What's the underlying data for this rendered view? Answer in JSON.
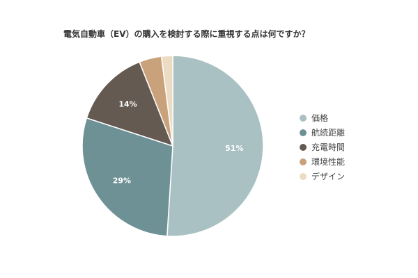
{
  "chart_data": {
    "type": "pie",
    "title": "電気自動車（EV）の購入を検討する際に重視する点は何ですか？",
    "categories": [
      "価格",
      "航続距離",
      "充電時間",
      "環境性能",
      "デザイン"
    ],
    "values": [
      51,
      29,
      14,
      4,
      2
    ],
    "data_labels": [
      "51%",
      "29%",
      "14%",
      "",
      ""
    ],
    "colors": [
      "#a9c1c2",
      "#6e9196",
      "#655a52",
      "#c9a27c",
      "#ecdcc3"
    ],
    "legend_position": "right",
    "start_angle": "top",
    "direction": "clockwise"
  }
}
